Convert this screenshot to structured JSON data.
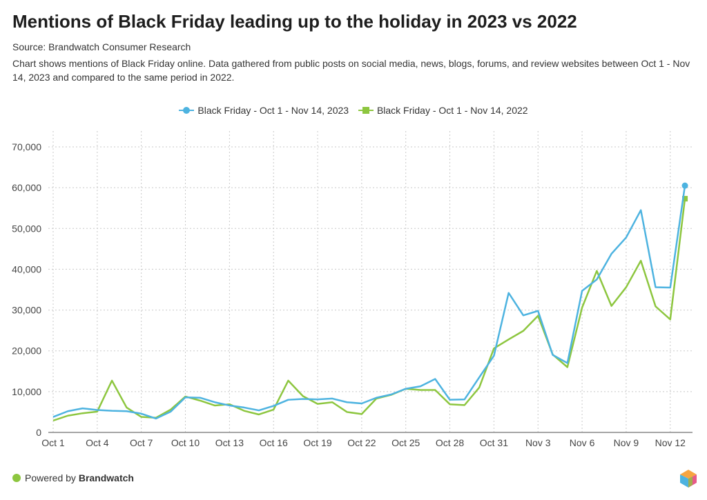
{
  "header": {
    "title": "Mentions of Black Friday leading up to the holiday in 2023 vs 2022",
    "source": "Source: Brandwatch Consumer Research",
    "description": "Chart shows mentions of Black Friday online. Data gathered from public posts on social media, news, blogs, forums, and review websites between Oct 1 - Nov 14, 2023 and compared to the same period in 2022."
  },
  "footer": {
    "powered_by": "Powered by",
    "brand": "Brandwatch"
  },
  "chart_data": {
    "type": "line",
    "title": "Mentions of Black Friday leading up to the holiday in 2023 vs 2022",
    "xlabel": "",
    "ylabel": "",
    "ylim": [
      0,
      70000
    ],
    "yticks": [
      "0",
      "10,000",
      "20,000",
      "30,000",
      "40,000",
      "50,000",
      "60,000",
      "70,000"
    ],
    "xtick_labels": [
      "Oct 1",
      "Oct 4",
      "Oct 7",
      "Oct 10",
      "Oct 13",
      "Oct 16",
      "Oct 19",
      "Oct 22",
      "Oct 25",
      "Oct 28",
      "Oct 31",
      "Nov 3",
      "Nov 6",
      "Nov 9",
      "Nov 12"
    ],
    "grid": true,
    "legend": "top-center",
    "x": [
      "Oct 1",
      "Oct 2",
      "Oct 3",
      "Oct 4",
      "Oct 5",
      "Oct 6",
      "Oct 7",
      "Oct 8",
      "Oct 9",
      "Oct 10",
      "Oct 11",
      "Oct 12",
      "Oct 13",
      "Oct 14",
      "Oct 15",
      "Oct 16",
      "Oct 17",
      "Oct 18",
      "Oct 19",
      "Oct 20",
      "Oct 21",
      "Oct 22",
      "Oct 23",
      "Oct 24",
      "Oct 25",
      "Oct 26",
      "Oct 27",
      "Oct 28",
      "Oct 29",
      "Oct 30",
      "Oct 31",
      "Nov 1",
      "Nov 2",
      "Nov 3",
      "Nov 4",
      "Nov 5",
      "Nov 6",
      "Nov 7",
      "Nov 8",
      "Nov 9",
      "Nov 10",
      "Nov 11",
      "Nov 12",
      "Nov 13"
    ],
    "series": [
      {
        "name": "Black Friday - Oct 1 - Nov 14, 2023",
        "color": "#4db3e0",
        "marker": "circle",
        "values": [
          3800,
          5200,
          5900,
          5500,
          5300,
          5200,
          4600,
          3400,
          5100,
          8600,
          8500,
          7400,
          6600,
          6100,
          5400,
          6500,
          8000,
          8200,
          8100,
          8300,
          7400,
          7100,
          8500,
          9300,
          10700,
          11300,
          13100,
          8000,
          8100,
          13500,
          18800,
          34200,
          28700,
          29800,
          19000,
          17000,
          34700,
          37500,
          43800,
          47800,
          54500,
          35600,
          35500,
          60500
        ]
      },
      {
        "name": "Black Friday - Oct 1 - Nov 14, 2022",
        "color": "#8dc63f",
        "marker": "square",
        "values": [
          2900,
          4100,
          4700,
          5100,
          12700,
          6100,
          3800,
          3600,
          5600,
          8800,
          7800,
          6600,
          6900,
          5300,
          4400,
          5600,
          12700,
          8900,
          7000,
          7400,
          5000,
          4500,
          8300,
          9200,
          10700,
          10400,
          10400,
          6900,
          6700,
          11000,
          20600,
          22800,
          24900,
          28600,
          19100,
          16000,
          30600,
          39600,
          31000,
          35600,
          42100,
          30900,
          27700,
          57300
        ]
      }
    ]
  }
}
